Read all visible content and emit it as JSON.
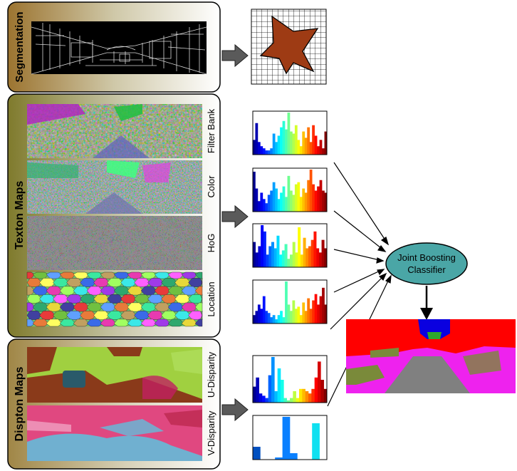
{
  "panels": {
    "segmentation": {
      "label": "Segmentation"
    },
    "texton": {
      "label": "Texton Maps",
      "maps": [
        "Filter Bank",
        "Color",
        "HoG",
        "Location"
      ]
    },
    "dispton": {
      "label": "Dispton Maps",
      "maps": [
        "U-Disparity",
        "V-Disparity"
      ]
    }
  },
  "classifier": {
    "line1": "Joint Boosting",
    "line2": "Classifier"
  },
  "colors": {
    "panel_gradient_start": "#a8823a",
    "panel_gradient_end": "#ffffff",
    "classifier_fill": "#4aa6a6",
    "superpixel_fill": "#9e3b14",
    "arrow_fill": "#5a5a5a"
  },
  "histograms": [
    {
      "id": "filter-bank",
      "values": [
        0.35,
        0.75,
        0.3,
        0.2,
        0.15,
        0.1,
        0.1,
        0.15,
        0.5,
        0.3,
        0.45,
        0.65,
        0.8,
        0.6,
        1.0,
        0.55,
        0.5,
        0.7,
        0.35,
        0.2,
        0.55,
        0.4,
        0.65,
        0.3,
        0.7,
        0.45,
        0.2,
        0.35,
        0.15,
        0.55
      ]
    },
    {
      "id": "color",
      "values": [
        0.95,
        0.55,
        0.25,
        0.45,
        0.3,
        0.2,
        0.4,
        0.5,
        0.7,
        0.55,
        0.3,
        0.45,
        0.6,
        0.35,
        0.85,
        0.5,
        0.4,
        0.65,
        0.7,
        0.35,
        0.55,
        0.45,
        0.75,
        1.0,
        0.65,
        0.5,
        0.6,
        0.75,
        0.5,
        0.45
      ]
    },
    {
      "id": "hog",
      "values": [
        0.6,
        0.35,
        0.5,
        1.0,
        0.85,
        0.3,
        0.5,
        0.6,
        0.45,
        0.75,
        0.3,
        0.4,
        0.55,
        0.2,
        0.3,
        0.6,
        0.35,
        0.95,
        0.3,
        0.7,
        0.45,
        0.5,
        0.65,
        0.85,
        0.45,
        0.35,
        0.65,
        0.45
      ]
    },
    {
      "id": "location",
      "values": [
        0.2,
        0.3,
        0.45,
        0.35,
        0.65,
        0.3,
        0.25,
        0.15,
        0.2,
        0.1,
        0.2,
        0.3,
        0.15,
        1.0,
        0.45,
        0.3,
        0.55,
        0.35,
        0.4,
        0.2,
        0.5,
        0.3,
        0.6,
        0.35,
        0.55,
        0.7,
        0.45,
        0.65,
        0.85,
        0.45
      ]
    },
    {
      "id": "u-disparity",
      "values": [
        0.35,
        0.55,
        0.2,
        0.15,
        0.1,
        0.6,
        1.0,
        0.25,
        0.75,
        0.5,
        0.1,
        0.05,
        0.1,
        0.25,
        0.1,
        0.3,
        0.3,
        0.25,
        0.2,
        0.3,
        0.55,
        0.9,
        0.5,
        0.3
      ]
    },
    {
      "id": "v-disparity",
      "values": [
        0.3,
        0.0,
        0.0,
        0.05,
        1.0,
        0.15,
        0.0,
        0.0,
        0.85,
        0.0
      ]
    }
  ],
  "result_labels": {
    "colors": [
      "#ff0000",
      "#0a00e0",
      "#ee22ee",
      "#808080",
      "#7a8a3a",
      "#2ea82e"
    ]
  }
}
